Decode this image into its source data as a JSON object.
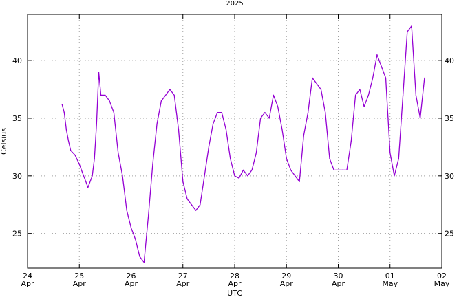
{
  "chart_data": {
    "type": "line",
    "title": "2025",
    "xlabel": "UTC",
    "ylabel": "Celsius",
    "xlim": [
      "2025-04-24T00:00",
      "2025-05-02T00:00"
    ],
    "ylim": [
      22,
      44
    ],
    "grid": true,
    "line_color": "#9400d3",
    "x_ticks": [
      {
        "t": "2025-04-24T00:00",
        "day": "24",
        "month": "Apr"
      },
      {
        "t": "2025-04-25T00:00",
        "day": "25",
        "month": "Apr"
      },
      {
        "t": "2025-04-26T00:00",
        "day": "26",
        "month": "Apr"
      },
      {
        "t": "2025-04-27T00:00",
        "day": "27",
        "month": "Apr"
      },
      {
        "t": "2025-04-28T00:00",
        "day": "28",
        "month": "Apr"
      },
      {
        "t": "2025-04-29T00:00",
        "day": "29",
        "month": "Apr"
      },
      {
        "t": "2025-04-30T00:00",
        "day": "30",
        "month": "Apr"
      },
      {
        "t": "2025-05-01T00:00",
        "day": "01",
        "month": "May"
      },
      {
        "t": "2025-05-02T00:00",
        "day": "02",
        "month": "May"
      }
    ],
    "y_ticks": [
      "25",
      "30",
      "35",
      "40"
    ],
    "series": [
      {
        "name": "",
        "x": [
          "2025-04-24T16:00",
          "2025-04-24T17:00",
          "2025-04-24T18:00",
          "2025-04-24T19:00",
          "2025-04-24T20:00",
          "2025-04-24T22:00",
          "2025-04-25T00:00",
          "2025-04-25T02:00",
          "2025-04-25T03:00",
          "2025-04-25T04:00",
          "2025-04-25T06:00",
          "2025-04-25T07:00",
          "2025-04-25T08:00",
          "2025-04-25T09:00",
          "2025-04-25T10:00",
          "2025-04-25T12:00",
          "2025-04-25T14:00",
          "2025-04-25T16:00",
          "2025-04-25T18:00",
          "2025-04-25T20:00",
          "2025-04-25T22:00",
          "2025-04-26T00:00",
          "2025-04-26T02:00",
          "2025-04-26T04:00",
          "2025-04-26T06:00",
          "2025-04-26T08:00",
          "2025-04-26T10:00",
          "2025-04-26T12:00",
          "2025-04-26T14:00",
          "2025-04-26T16:00",
          "2025-04-26T18:00",
          "2025-04-26T20:00",
          "2025-04-26T22:00",
          "2025-04-27T00:00",
          "2025-04-27T02:00",
          "2025-04-27T04:00",
          "2025-04-27T06:00",
          "2025-04-27T08:00",
          "2025-04-27T10:00",
          "2025-04-27T12:00",
          "2025-04-27T14:00",
          "2025-04-27T16:00",
          "2025-04-27T18:00",
          "2025-04-27T20:00",
          "2025-04-27T22:00",
          "2025-04-28T00:00",
          "2025-04-28T02:00",
          "2025-04-28T04:00",
          "2025-04-28T06:00",
          "2025-04-28T08:00",
          "2025-04-28T10:00",
          "2025-04-28T12:00",
          "2025-04-28T14:00",
          "2025-04-28T16:00",
          "2025-04-28T18:00",
          "2025-04-28T20:00",
          "2025-04-28T22:00",
          "2025-04-29T00:00",
          "2025-04-29T02:00",
          "2025-04-29T04:00",
          "2025-04-29T06:00",
          "2025-04-29T08:00",
          "2025-04-29T10:00",
          "2025-04-29T12:00",
          "2025-04-29T14:00",
          "2025-04-29T16:00",
          "2025-04-29T18:00",
          "2025-04-29T20:00",
          "2025-04-29T22:00",
          "2025-04-30T00:00",
          "2025-04-30T02:00",
          "2025-04-30T04:00",
          "2025-04-30T06:00",
          "2025-04-30T08:00",
          "2025-04-30T10:00",
          "2025-04-30T12:00",
          "2025-04-30T14:00",
          "2025-04-30T16:00",
          "2025-04-30T18:00",
          "2025-04-30T20:00",
          "2025-04-30T22:00",
          "2025-05-01T00:00",
          "2025-05-01T02:00",
          "2025-05-01T04:00",
          "2025-05-01T06:00",
          "2025-05-01T08:00",
          "2025-05-01T10:00",
          "2025-05-01T12:00",
          "2025-05-01T14:00",
          "2025-05-01T16:00"
        ],
        "y": [
          36.2,
          35.5,
          34.0,
          33.0,
          32.2,
          31.8,
          31.0,
          30.0,
          29.5,
          29.0,
          30.0,
          31.5,
          34.5,
          39.0,
          37.0,
          37.0,
          36.5,
          35.5,
          32.0,
          30.0,
          27.0,
          25.5,
          24.5,
          23.0,
          22.5,
          26.5,
          31.0,
          34.5,
          36.5,
          37.0,
          37.5,
          37.0,
          34.0,
          29.5,
          28.0,
          27.5,
          27.0,
          27.5,
          30.0,
          32.5,
          34.5,
          35.5,
          35.5,
          34.0,
          31.5,
          30.0,
          29.8,
          30.5,
          30.0,
          30.5,
          32.0,
          35.0,
          35.5,
          35.0,
          37.0,
          36.0,
          34.0,
          31.5,
          30.5,
          30.0,
          29.5,
          33.5,
          35.5,
          38.5,
          38.0,
          37.5,
          35.5,
          31.5,
          30.5,
          30.5,
          30.5,
          30.5,
          33.0,
          37.0,
          37.5,
          36.0,
          37.0,
          38.5,
          40.5,
          39.5,
          38.5,
          32.0,
          30.0,
          31.5,
          37.0,
          42.5,
          43.0,
          37.0,
          35.0,
          38.5
        ]
      }
    ]
  }
}
